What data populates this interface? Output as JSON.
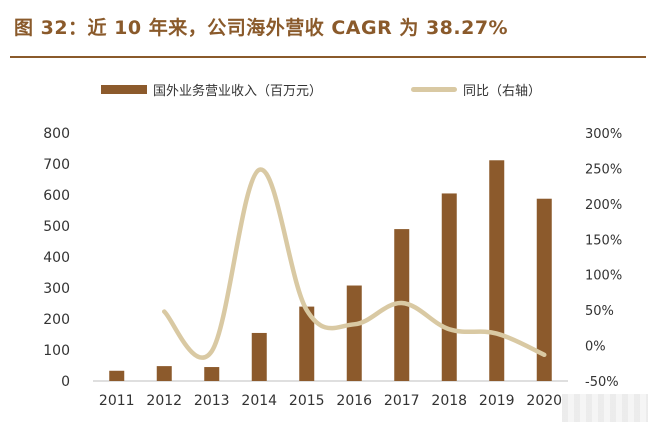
{
  "title": "图 32：近 10 年来，公司海外营收 CAGR 为 38.27%",
  "colors": {
    "title": "#8a5a2b",
    "bar": "#8c5a2c",
    "line": "#d9c9a3",
    "axis_text": "#333333"
  },
  "chart_data": {
    "type": "bar",
    "categories": [
      "2011",
      "2012",
      "2013",
      "2014",
      "2015",
      "2016",
      "2017",
      "2018",
      "2019",
      "2020"
    ],
    "series": [
      {
        "name": "国外业务营业收入（百万元）",
        "type": "bar",
        "axis": "left",
        "values": [
          33,
          48,
          45,
          155,
          240,
          308,
          490,
          605,
          712,
          588
        ]
      },
      {
        "name": "同比（右轴）",
        "type": "line",
        "axis": "right",
        "values": [
          null,
          48,
          -8,
          248,
          50,
          30,
          60,
          23,
          17,
          -13
        ]
      }
    ],
    "yleft": {
      "min": 0,
      "max": 800,
      "ticks": [
        "0",
        "100",
        "200",
        "300",
        "400",
        "500",
        "600",
        "700",
        "800"
      ]
    },
    "yright": {
      "min": -50,
      "max": 300,
      "ticks": [
        "-50%",
        "0%",
        "50%",
        "100%",
        "150%",
        "200%",
        "250%",
        "300%"
      ]
    },
    "legend_position": "top",
    "grid": false
  }
}
